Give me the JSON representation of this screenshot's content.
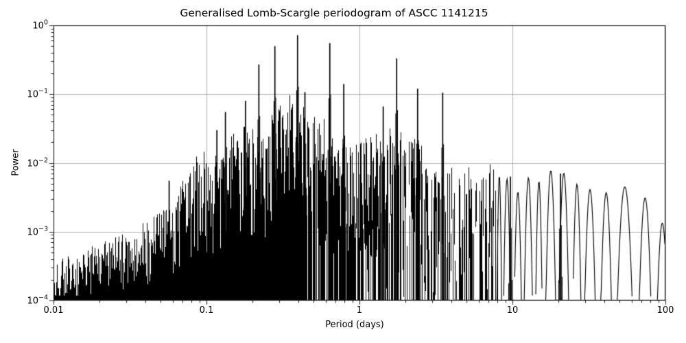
{
  "figure": {
    "background": "#ffffff"
  },
  "chart_data": {
    "type": "line",
    "title": "Generalised Lomb-Scargle periodogram of ASCC 1141215",
    "xlabel": "Period (days)",
    "ylabel": "Power",
    "xscale": "log",
    "yscale": "log",
    "xlim": [
      0.01,
      100
    ],
    "ylim": [
      0.0001,
      1
    ],
    "grid": true,
    "legend": null,
    "line_color": "#000000",
    "grid_color": "#b0b0b0",
    "background_color": "#ffffff",
    "x_ticks": [
      {
        "label": "0.01",
        "value": 0.01
      },
      {
        "label": "0.1",
        "value": 0.1
      },
      {
        "label": "1",
        "value": 1
      },
      {
        "label": "10",
        "value": 10
      },
      {
        "label": "100",
        "value": 100
      }
    ],
    "y_ticks": [
      {
        "base": "10",
        "exp": "0",
        "value": 1
      },
      {
        "base": "10",
        "exp": "−1",
        "value": 0.1
      },
      {
        "base": "10",
        "exp": "−2",
        "value": 0.01
      },
      {
        "base": "10",
        "exp": "−3",
        "value": 0.001
      },
      {
        "base": "10",
        "exp": "−4",
        "value": 0.0001
      }
    ],
    "major_peaks": [
      {
        "period_days": 0.057,
        "power": 0.0055
      },
      {
        "period_days": 0.117,
        "power": 0.03
      },
      {
        "period_days": 0.133,
        "power": 0.055
      },
      {
        "period_days": 0.18,
        "power": 0.08
      },
      {
        "period_days": 0.22,
        "power": 0.27
      },
      {
        "period_days": 0.28,
        "power": 0.5
      },
      {
        "period_days": 0.3,
        "power": 0.057
      },
      {
        "period_days": 0.394,
        "power": 0.72
      },
      {
        "period_days": 0.44,
        "power": 0.107
      },
      {
        "period_days": 0.64,
        "power": 0.55
      },
      {
        "period_days": 0.79,
        "power": 0.14
      },
      {
        "period_days": 1.43,
        "power": 0.066
      },
      {
        "period_days": 1.75,
        "power": 0.33
      },
      {
        "period_days": 2.4,
        "power": 0.12
      },
      {
        "period_days": 3.5,
        "power": 0.105
      },
      {
        "period_days": 9.7,
        "power": 0.0063
      },
      {
        "period_days": 20.6,
        "power": 0.007
      }
    ],
    "envelope_power": [
      {
        "period_days": 0.01,
        "power": 0.00023
      },
      {
        "period_days": 0.016,
        "power": 0.0003
      },
      {
        "period_days": 0.023,
        "power": 0.00045
      },
      {
        "period_days": 0.035,
        "power": 0.0009
      },
      {
        "period_days": 0.056,
        "power": 0.0022
      },
      {
        "period_days": 0.08,
        "power": 0.005
      },
      {
        "period_days": 0.1,
        "power": 0.009
      },
      {
        "period_days": 0.135,
        "power": 0.022
      },
      {
        "period_days": 0.185,
        "power": 0.038
      },
      {
        "period_days": 0.25,
        "power": 0.036
      },
      {
        "period_days": 0.35,
        "power": 0.038
      },
      {
        "period_days": 0.47,
        "power": 0.032
      },
      {
        "period_days": 0.64,
        "power": 0.03
      },
      {
        "period_days": 0.87,
        "power": 0.016
      },
      {
        "period_days": 1.2,
        "power": 0.011
      },
      {
        "period_days": 1.6,
        "power": 0.013
      },
      {
        "period_days": 2.2,
        "power": 0.009
      },
      {
        "period_days": 3.0,
        "power": 0.008
      },
      {
        "period_days": 4.1,
        "power": 0.0065
      },
      {
        "period_days": 5.6,
        "power": 0.0055
      },
      {
        "period_days": 7.7,
        "power": 0.0045
      },
      {
        "period_days": 11.6,
        "power": 0.0038
      },
      {
        "period_days": 16.0,
        "power": 0.0042
      },
      {
        "period_days": 20.6,
        "power": 0.0065
      },
      {
        "period_days": 29.0,
        "power": 0.0036
      },
      {
        "period_days": 48.0,
        "power": 0.0028
      },
      {
        "period_days": 71.0,
        "power": 0.003
      },
      {
        "period_days": 100.0,
        "power": 0.0008
      }
    ]
  }
}
